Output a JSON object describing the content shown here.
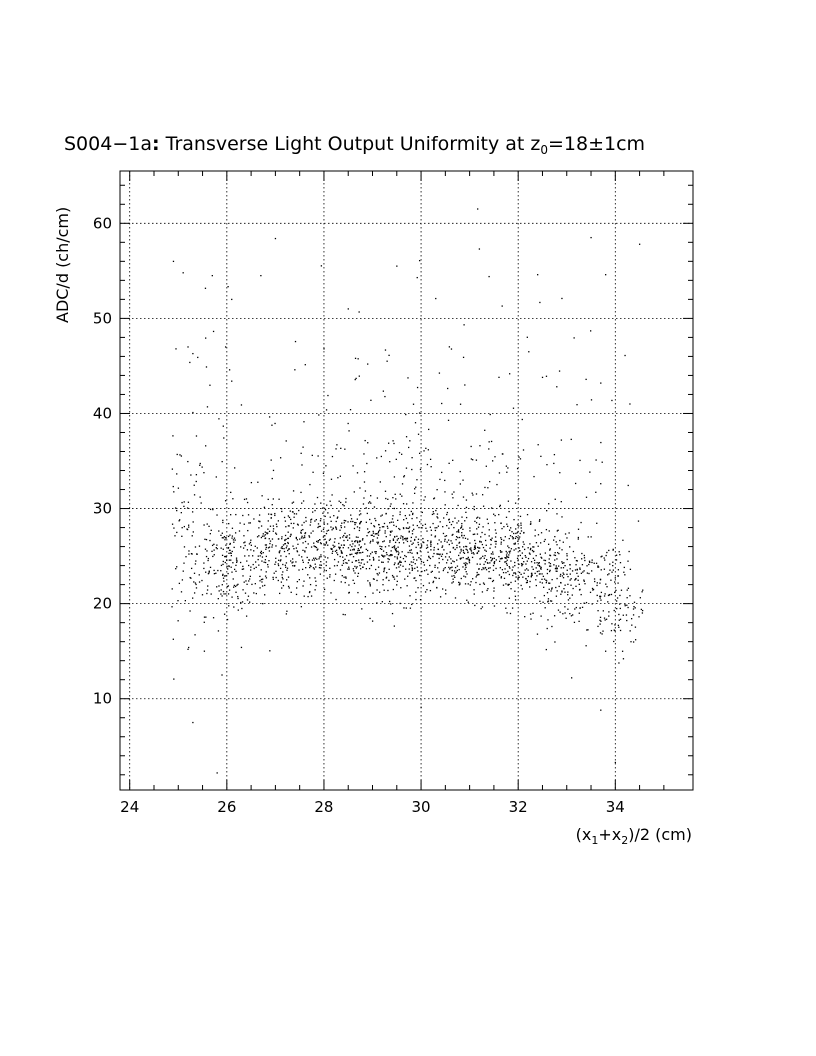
{
  "chart_data": {
    "type": "scatter",
    "title": {
      "prefix": "S004−1a",
      "colon": ":",
      "main": " Transverse Light Output Uniformity at z",
      "sub": "0",
      "suffix": "=18±1cm"
    },
    "xlabel": {
      "p1": "(x",
      "s1": "1",
      "p2": "+x",
      "s2": "2",
      "p3": ")/2 (cm)"
    },
    "ylabel": "ADC/d (ch/cm)",
    "xlim": [
      23.8,
      35.6
    ],
    "ylim": [
      0.4,
      65.5
    ],
    "xticks": [
      24,
      26,
      28,
      30,
      32,
      34
    ],
    "xtick_labels": [
      "24",
      "26",
      "28",
      "30",
      "32",
      "34"
    ],
    "yticks": [
      10,
      20,
      30,
      40,
      50,
      60
    ],
    "ytick_labels": [
      "10",
      "20",
      "30",
      "40",
      "50",
      "60"
    ],
    "grid": true,
    "series": [
      {
        "marker": "dot",
        "color": "#000000",
        "density_profile": [
          {
            "x": 25.0,
            "y": 26.5,
            "sx": 0.3,
            "sy": 5.5,
            "n": 90
          },
          {
            "x": 26.0,
            "y": 24.5,
            "sx": 0.45,
            "sy": 2.8,
            "n": 220
          },
          {
            "x": 27.2,
            "y": 25.5,
            "sx": 0.55,
            "sy": 2.6,
            "n": 300
          },
          {
            "x": 28.5,
            "y": 26.0,
            "sx": 0.55,
            "sy": 2.5,
            "n": 320
          },
          {
            "x": 29.7,
            "y": 25.5,
            "sx": 0.55,
            "sy": 2.5,
            "n": 300
          },
          {
            "x": 30.9,
            "y": 25.5,
            "sx": 0.55,
            "sy": 2.3,
            "n": 300
          },
          {
            "x": 32.0,
            "y": 24.5,
            "sx": 0.45,
            "sy": 2.3,
            "n": 260
          },
          {
            "x": 33.0,
            "y": 23.0,
            "sx": 0.4,
            "sy": 2.6,
            "n": 200
          },
          {
            "x": 34.0,
            "y": 20.5,
            "sx": 0.3,
            "sy": 3.0,
            "n": 130
          },
          {
            "x": 29.5,
            "y": 33.5,
            "sx": 2.4,
            "sy": 3.0,
            "n": 200
          },
          {
            "x": 29.5,
            "y": 46.0,
            "sx": 2.6,
            "sy": 6.5,
            "n": 75
          }
        ],
        "points": [
          [
            25.3,
            7.5
          ],
          [
            25.8,
            2.2
          ],
          [
            34.0,
            3.3
          ],
          [
            30.0,
            9.1
          ],
          [
            33.7,
            8.8
          ],
          [
            25.2,
            15.2
          ],
          [
            26.3,
            15.4
          ],
          [
            33.8,
            15.0
          ],
          [
            33.1,
            12.2
          ],
          [
            25.9,
            12.5
          ],
          [
            34.5,
            57.8
          ],
          [
            33.5,
            58.5
          ],
          [
            24.9,
            56.0
          ],
          [
            27.0,
            58.4
          ],
          [
            31.2,
            57.3
          ],
          [
            25.1,
            54.8
          ],
          [
            25.7,
            54.5
          ],
          [
            26.7,
            54.5
          ],
          [
            29.5,
            55.5
          ],
          [
            31.4,
            54.4
          ],
          [
            32.4,
            54.6
          ],
          [
            33.8,
            54.6
          ],
          [
            26.1,
            52.0
          ],
          [
            28.5,
            51.0
          ],
          [
            32.9,
            52.1
          ],
          [
            25.2,
            47.0
          ],
          [
            25.3,
            46.3
          ],
          [
            25.4,
            45.9
          ],
          [
            28.0,
            46.8
          ],
          [
            28.9,
            45.2
          ],
          [
            29.3,
            45.5
          ],
          [
            34.2,
            46.1
          ],
          [
            33.7,
            43.2
          ],
          [
            27.4,
            44.6
          ],
          [
            26.3,
            40.9
          ],
          [
            25.6,
            40.7
          ],
          [
            34.3,
            41.0
          ],
          [
            25.3,
            40.1
          ],
          [
            30.9,
            43.0
          ],
          [
            32.5,
            43.8
          ]
        ]
      }
    ]
  }
}
